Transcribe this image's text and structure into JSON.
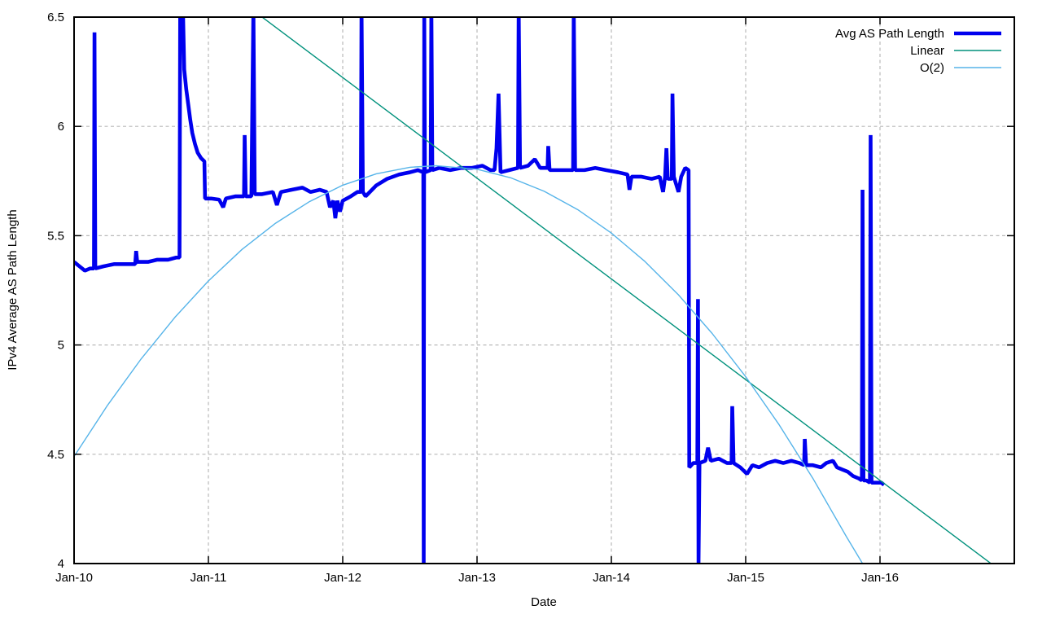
{
  "figure": {
    "background": "#ffffff",
    "axis_color": "#000000",
    "grid_color": "#b9b9b9",
    "text_color": "#000000"
  },
  "chart_data": {
    "type": "line",
    "title": "",
    "xlabel": "Date",
    "ylabel": "IPv4 Average AS Path Length",
    "xlim": [
      2010.0,
      2017.0
    ],
    "ylim": [
      4.0,
      6.5
    ],
    "grid": true,
    "legend_position": "top-right-inside",
    "x_ticks": [
      {
        "t": 2010,
        "label": "Jan-10"
      },
      {
        "t": 2011,
        "label": "Jan-11"
      },
      {
        "t": 2012,
        "label": "Jan-12"
      },
      {
        "t": 2013,
        "label": "Jan-13"
      },
      {
        "t": 2014,
        "label": "Jan-14"
      },
      {
        "t": 2015,
        "label": "Jan-15"
      },
      {
        "t": 2016,
        "label": "Jan-16"
      }
    ],
    "y_ticks": [
      {
        "v": 4.0,
        "label": "4"
      },
      {
        "v": 4.5,
        "label": "4.5"
      },
      {
        "v": 5.0,
        "label": "5"
      },
      {
        "v": 5.5,
        "label": "5.5"
      },
      {
        "v": 6.0,
        "label": "6"
      },
      {
        "v": 6.5,
        "label": "6.5"
      }
    ],
    "series": [
      {
        "name": "Avg AS Path Length",
        "color": "#0000ee",
        "width": 4.6,
        "points": [
          [
            2010.0,
            5.38
          ],
          [
            2010.04,
            5.36
          ],
          [
            2010.08,
            5.34
          ],
          [
            2010.12,
            5.35
          ],
          [
            2010.148,
            5.35
          ],
          [
            2010.152,
            6.43
          ],
          [
            2010.158,
            5.35
          ],
          [
            2010.22,
            5.36
          ],
          [
            2010.3,
            5.37
          ],
          [
            2010.38,
            5.37
          ],
          [
            2010.455,
            5.37
          ],
          [
            2010.462,
            5.43
          ],
          [
            2010.47,
            5.38
          ],
          [
            2010.55,
            5.38
          ],
          [
            2010.62,
            5.39
          ],
          [
            2010.7,
            5.39
          ],
          [
            2010.76,
            5.4
          ],
          [
            2010.785,
            5.4
          ],
          [
            2010.79,
            6.55
          ],
          [
            2010.81,
            6.55
          ],
          [
            2010.82,
            6.26
          ],
          [
            2010.835,
            6.17
          ],
          [
            2010.85,
            6.1
          ],
          [
            2010.865,
            6.03
          ],
          [
            2010.88,
            5.97
          ],
          [
            2010.9,
            5.92
          ],
          [
            2010.92,
            5.88
          ],
          [
            2010.945,
            5.855
          ],
          [
            2010.97,
            5.84
          ],
          [
            2010.975,
            5.67
          ],
          [
            2011.02,
            5.67
          ],
          [
            2011.08,
            5.665
          ],
          [
            2011.11,
            5.63
          ],
          [
            2011.13,
            5.67
          ],
          [
            2011.2,
            5.68
          ],
          [
            2011.265,
            5.68
          ],
          [
            2011.27,
            5.96
          ],
          [
            2011.278,
            5.68
          ],
          [
            2011.32,
            5.68
          ],
          [
            2011.335,
            6.55
          ],
          [
            2011.345,
            5.69
          ],
          [
            2011.4,
            5.69
          ],
          [
            2011.48,
            5.7
          ],
          [
            2011.51,
            5.64
          ],
          [
            2011.54,
            5.7
          ],
          [
            2011.62,
            5.71
          ],
          [
            2011.7,
            5.72
          ],
          [
            2011.76,
            5.7
          ],
          [
            2011.83,
            5.71
          ],
          [
            2011.88,
            5.7
          ],
          [
            2011.905,
            5.63
          ],
          [
            2011.93,
            5.66
          ],
          [
            2011.945,
            5.58
          ],
          [
            2011.96,
            5.66
          ],
          [
            2011.98,
            5.61
          ],
          [
            2012.0,
            5.66
          ],
          [
            2012.06,
            5.68
          ],
          [
            2012.11,
            5.7
          ],
          [
            2012.135,
            5.7
          ],
          [
            2012.14,
            6.55
          ],
          [
            2012.15,
            5.7
          ],
          [
            2012.17,
            5.68
          ],
          [
            2012.25,
            5.73
          ],
          [
            2012.33,
            5.76
          ],
          [
            2012.42,
            5.78
          ],
          [
            2012.5,
            5.79
          ],
          [
            2012.56,
            5.8
          ],
          [
            2012.6,
            5.79
          ],
          [
            2012.603,
            4.0
          ],
          [
            2012.607,
            6.55
          ],
          [
            2012.612,
            5.79
          ],
          [
            2012.655,
            5.8
          ],
          [
            2012.66,
            6.55
          ],
          [
            2012.667,
            5.8
          ],
          [
            2012.72,
            5.81
          ],
          [
            2012.8,
            5.8
          ],
          [
            2012.88,
            5.81
          ],
          [
            2012.96,
            5.81
          ],
          [
            2013.04,
            5.82
          ],
          [
            2013.1,
            5.8
          ],
          [
            2013.13,
            5.8
          ],
          [
            2013.145,
            5.9
          ],
          [
            2013.16,
            6.15
          ],
          [
            2013.175,
            5.79
          ],
          [
            2013.24,
            5.8
          ],
          [
            2013.305,
            5.81
          ],
          [
            2013.31,
            6.55
          ],
          [
            2013.32,
            5.81
          ],
          [
            2013.38,
            5.82
          ],
          [
            2013.43,
            5.85
          ],
          [
            2013.47,
            5.81
          ],
          [
            2013.525,
            5.81
          ],
          [
            2013.53,
            5.91
          ],
          [
            2013.54,
            5.8
          ],
          [
            2013.62,
            5.8
          ],
          [
            2013.715,
            5.8
          ],
          [
            2013.72,
            6.55
          ],
          [
            2013.73,
            5.8
          ],
          [
            2013.8,
            5.8
          ],
          [
            2013.88,
            5.81
          ],
          [
            2013.96,
            5.8
          ],
          [
            2014.05,
            5.79
          ],
          [
            2014.12,
            5.78
          ],
          [
            2014.135,
            5.71
          ],
          [
            2014.15,
            5.77
          ],
          [
            2014.22,
            5.77
          ],
          [
            2014.3,
            5.76
          ],
          [
            2014.36,
            5.77
          ],
          [
            2014.385,
            5.7
          ],
          [
            2014.4,
            5.77
          ],
          [
            2014.41,
            5.9
          ],
          [
            2014.42,
            5.76
          ],
          [
            2014.45,
            5.76
          ],
          [
            2014.455,
            6.15
          ],
          [
            2014.465,
            5.77
          ],
          [
            2014.5,
            5.7
          ],
          [
            2014.52,
            5.77
          ],
          [
            2014.55,
            5.81
          ],
          [
            2014.575,
            5.8
          ],
          [
            2014.58,
            4.44
          ],
          [
            2014.61,
            4.46
          ],
          [
            2014.64,
            4.46
          ],
          [
            2014.645,
            5.21
          ],
          [
            2014.649,
            4.0
          ],
          [
            2014.656,
            4.46
          ],
          [
            2014.7,
            4.47
          ],
          [
            2014.72,
            4.53
          ],
          [
            2014.74,
            4.47
          ],
          [
            2014.8,
            4.48
          ],
          [
            2014.86,
            4.46
          ],
          [
            2014.895,
            4.46
          ],
          [
            2014.9,
            4.72
          ],
          [
            2014.91,
            4.46
          ],
          [
            2014.96,
            4.44
          ],
          [
            2015.01,
            4.41
          ],
          [
            2015.05,
            4.45
          ],
          [
            2015.1,
            4.44
          ],
          [
            2015.16,
            4.46
          ],
          [
            2015.22,
            4.47
          ],
          [
            2015.28,
            4.46
          ],
          [
            2015.34,
            4.47
          ],
          [
            2015.4,
            4.46
          ],
          [
            2015.435,
            4.45
          ],
          [
            2015.44,
            4.57
          ],
          [
            2015.45,
            4.45
          ],
          [
            2015.5,
            4.45
          ],
          [
            2015.56,
            4.44
          ],
          [
            2015.6,
            4.46
          ],
          [
            2015.65,
            4.47
          ],
          [
            2015.68,
            4.44
          ],
          [
            2015.72,
            4.43
          ],
          [
            2015.76,
            4.42
          ],
          [
            2015.8,
            4.4
          ],
          [
            2015.84,
            4.39
          ],
          [
            2015.865,
            4.38
          ],
          [
            2015.87,
            5.71
          ],
          [
            2015.877,
            4.38
          ],
          [
            2015.9,
            4.38
          ],
          [
            2015.925,
            4.37
          ],
          [
            2015.93,
            5.96
          ],
          [
            2015.937,
            4.37
          ],
          [
            2015.97,
            4.37
          ],
          [
            2016.01,
            4.37
          ],
          [
            2016.03,
            4.36
          ]
        ]
      },
      {
        "name": "Linear",
        "color": "#00917c",
        "width": 1.4,
        "points": [
          [
            2010.0,
            7.145
          ],
          [
            2017.0,
            3.92
          ]
        ]
      },
      {
        "name": "O(2)",
        "color": "#56b4e9",
        "width": 1.4,
        "points": [
          [
            2010.0,
            4.49
          ],
          [
            2010.25,
            4.725
          ],
          [
            2010.5,
            4.937
          ],
          [
            2010.75,
            5.126
          ],
          [
            2011.0,
            5.293
          ],
          [
            2011.25,
            5.437
          ],
          [
            2011.5,
            5.557
          ],
          [
            2011.75,
            5.655
          ],
          [
            2012.0,
            5.731
          ],
          [
            2012.25,
            5.783
          ],
          [
            2012.5,
            5.813
          ],
          [
            2012.7,
            5.82
          ],
          [
            2013.0,
            5.804
          ],
          [
            2013.25,
            5.765
          ],
          [
            2013.5,
            5.703
          ],
          [
            2013.75,
            5.619
          ],
          [
            2014.0,
            5.512
          ],
          [
            2014.25,
            5.382
          ],
          [
            2014.5,
            5.229
          ],
          [
            2014.75,
            5.053
          ],
          [
            2015.0,
            4.855
          ],
          [
            2015.25,
            4.634
          ],
          [
            2015.5,
            4.39
          ],
          [
            2015.75,
            4.123
          ],
          [
            2015.88,
            3.99
          ]
        ]
      }
    ]
  }
}
